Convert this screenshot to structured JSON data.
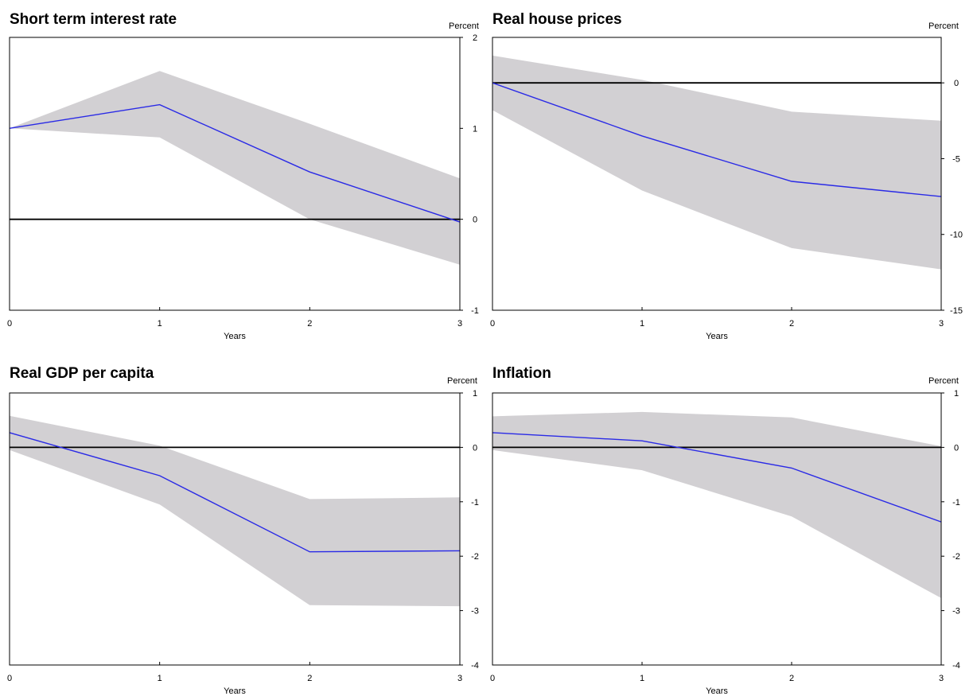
{
  "chart_data": [
    {
      "type": "line",
      "title": "Short term interest rate",
      "ylabel": "Percent",
      "xlabel": "Years",
      "x": [
        0,
        1,
        2,
        3
      ],
      "xticks": [
        "0",
        "1",
        "2",
        "3"
      ],
      "ylim": [
        -1,
        2
      ],
      "yticks": [
        "-1",
        "0",
        "1",
        "2"
      ],
      "zero_line": 0,
      "series": [
        {
          "values": [
            1.0,
            1.26,
            0.52,
            -0.03
          ],
          "color": "#2a2ae6"
        }
      ],
      "band": {
        "upper": [
          1.0,
          1.63,
          1.05,
          0.45
        ],
        "lower": [
          1.0,
          0.9,
          0.0,
          -0.5
        ],
        "color": "#d2d0d3"
      },
      "grid": false
    },
    {
      "type": "line",
      "title": "Real house prices",
      "ylabel": "Percent",
      "xlabel": "Years",
      "x": [
        0,
        1,
        2,
        3
      ],
      "xticks": [
        "0",
        "1",
        "2",
        "3"
      ],
      "ylim": [
        -15,
        3
      ],
      "yticks": [
        "-15",
        "-10",
        "-5",
        "0"
      ],
      "zero_line": 0,
      "series": [
        {
          "values": [
            0.0,
            -3.5,
            -6.5,
            -7.5
          ],
          "color": "#2a2ae6"
        }
      ],
      "band": {
        "upper": [
          1.8,
          0.2,
          -1.9,
          -2.5
        ],
        "lower": [
          -1.8,
          -7.1,
          -10.9,
          -12.3
        ],
        "color": "#d2d0d3"
      },
      "grid": false
    },
    {
      "type": "line",
      "title": "Real GDP per capita",
      "ylabel": "Percent",
      "xlabel": "Years",
      "x": [
        0,
        1,
        2,
        3
      ],
      "xticks": [
        "0",
        "1",
        "2",
        "3"
      ],
      "ylim": [
        -4,
        1
      ],
      "yticks": [
        "-4",
        "-3",
        "-2",
        "-1",
        "0",
        "1"
      ],
      "zero_line": 0,
      "series": [
        {
          "values": [
            0.27,
            -0.52,
            -1.92,
            -1.9
          ],
          "color": "#2a2ae6"
        }
      ],
      "band": {
        "upper": [
          0.58,
          0.03,
          -0.95,
          -0.92
        ],
        "lower": [
          -0.05,
          -1.05,
          -2.9,
          -2.92
        ],
        "color": "#d2d0d3"
      },
      "grid": false
    },
    {
      "type": "line",
      "title": "Inflation",
      "ylabel": "Percent",
      "xlabel": "Years",
      "x": [
        0,
        1,
        2,
        3
      ],
      "xticks": [
        "0",
        "1",
        "2",
        "3"
      ],
      "ylim": [
        -4,
        1
      ],
      "yticks": [
        "-4",
        "-3",
        "-2",
        "-1",
        "0",
        "1"
      ],
      "zero_line": 0,
      "series": [
        {
          "values": [
            0.27,
            0.12,
            -0.38,
            -1.37
          ],
          "color": "#2a2ae6"
        }
      ],
      "band": {
        "upper": [
          0.57,
          0.65,
          0.55,
          0.02
        ],
        "lower": [
          -0.05,
          -0.42,
          -1.27,
          -2.77
        ],
        "color": "#d2d0d3"
      },
      "grid": false
    }
  ]
}
